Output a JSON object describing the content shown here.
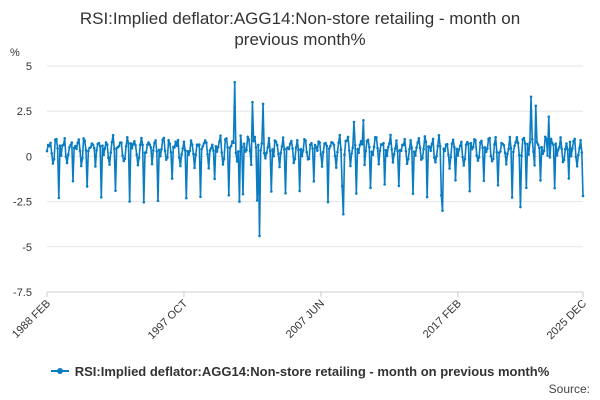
{
  "title_line1": "RSI:Implied deflator:AGG14:Non-store retailing - month on",
  "title_line2": "previous month%",
  "source_label": "Source:",
  "colors": {
    "series": "#0a7cc1",
    "grid": "#e6e6e6",
    "axis": "#cccccc"
  },
  "chart_data": {
    "type": "line",
    "title": "RSI:Implied deflator:AGG14:Non-store retailing - month on previous month%",
    "ylabel": "%",
    "xlabel": "",
    "ylim": [
      -7.5,
      5
    ],
    "yticks": [
      5,
      2.5,
      0,
      -2.5,
      -5,
      -7.5
    ],
    "ytick_labels": [
      "5",
      "2.5",
      "0",
      "-2.5",
      "-5",
      "-7.5"
    ],
    "xlim": [
      "1988-02",
      "2025-12"
    ],
    "xticks": [
      "1988 FEB",
      "1997 OCT",
      "2007 JUN",
      "2017 FEB",
      "2025 DEC"
    ],
    "grid": true,
    "legend_position": "bottom",
    "series": [
      {
        "name": "RSI:Implied deflator:AGG14:Non-store retailing - month on previous month%",
        "color": "#0a7cc1",
        "annual_pattern": [
          0.5,
          0.3,
          0.6,
          0.8,
          0.9,
          0.2,
          -0.4,
          0.1,
          0.7,
          0.9,
          0.5,
          -1.8
        ],
        "notable_points": [
          {
            "x": "2001-05",
            "y": 4.1
          },
          {
            "x": "2001-09",
            "y": -2.5
          },
          {
            "x": "2002-08",
            "y": 3.0
          },
          {
            "x": "2003-02",
            "y": -4.4
          },
          {
            "x": "2003-05",
            "y": 2.9
          },
          {
            "x": "2009-01",
            "y": -3.2
          },
          {
            "x": "2009-10",
            "y": 1.9
          },
          {
            "x": "2010-06",
            "y": 2.0
          },
          {
            "x": "2016-01",
            "y": -3.0
          },
          {
            "x": "2021-07",
            "y": -2.8
          },
          {
            "x": "2022-04",
            "y": 3.3
          },
          {
            "x": "2022-08",
            "y": 2.8
          },
          {
            "x": "2023-07",
            "y": 2.2
          },
          {
            "x": "2025-01",
            "y": 0.8
          }
        ]
      }
    ]
  }
}
